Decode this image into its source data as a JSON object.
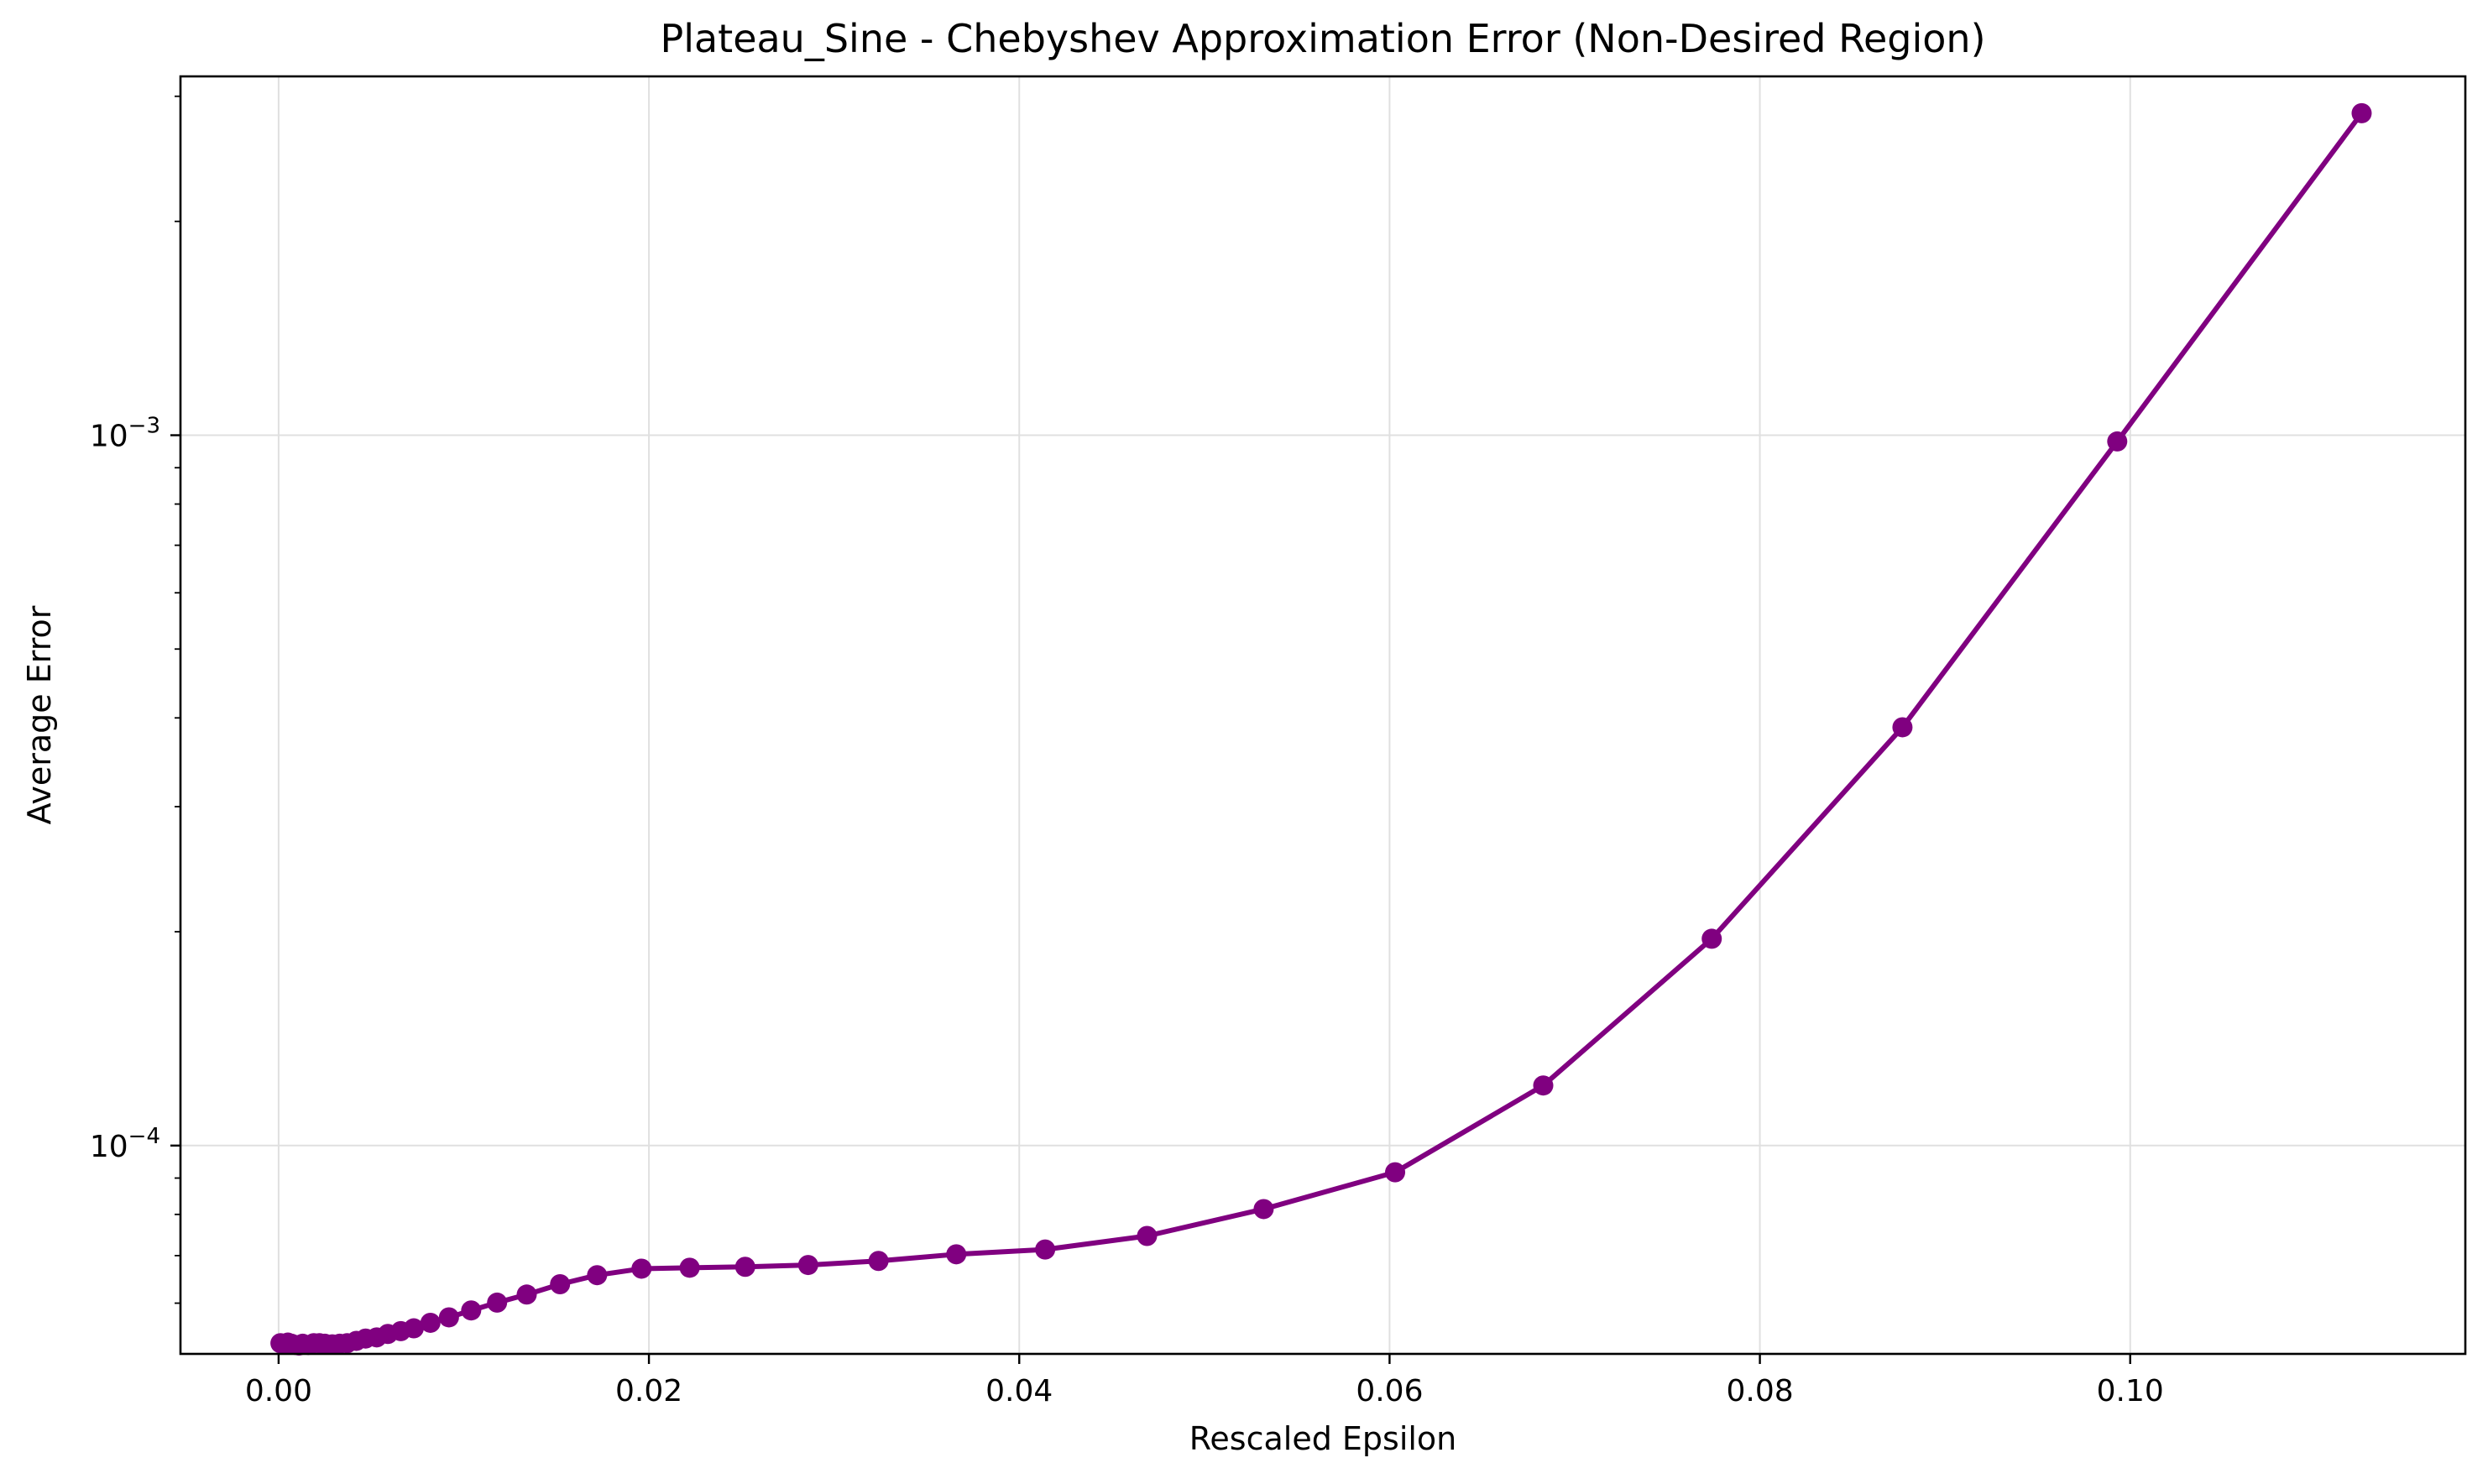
{
  "chart_data": {
    "type": "line",
    "title": "Plateau_Sine - Chebyshev Approximation Error (Non-Desired Region)",
    "xlabel": "Rescaled Epsilon",
    "ylabel": "Average Error",
    "x_ticks": [
      "0.00",
      "0.02",
      "0.04",
      "0.06",
      "0.08",
      "0.10"
    ],
    "y_ticks": [
      {
        "base": "10",
        "exp": "−4",
        "value": 0.0001
      },
      {
        "base": "10",
        "exp": "−3",
        "value": 0.001
      }
    ],
    "xlim": [
      -0.0053,
      0.1181
    ],
    "ylim": [
      5.09e-05,
      0.0032
    ],
    "yscale": "log",
    "grid": true,
    "legend": "none",
    "colors": {
      "line": "#800080",
      "grid": "#e0e0e0",
      "axes": "#000000"
    },
    "series": [
      {
        "x": [
          0.0001,
          0.0003,
          0.0005,
          0.0007,
          0.0009,
          0.0011,
          0.0013,
          0.0016,
          0.0019,
          0.0022,
          0.0025,
          0.0029,
          0.0033,
          0.0037,
          0.0042,
          0.0047,
          0.0053,
          0.0059,
          0.0066,
          0.0073,
          0.0082,
          0.0092,
          0.0104,
          0.0118,
          0.0134,
          0.0152,
          0.0172,
          0.0196,
          0.0222,
          0.0252,
          0.0286,
          0.0324,
          0.0366,
          0.0414,
          0.0469,
          0.0532,
          0.0603,
          0.0683,
          0.0774,
          0.0877,
          0.0993,
          0.1125
        ],
        "values": [
          5.27e-05,
          5.26e-05,
          5.28e-05,
          5.26e-05,
          5.24e-05,
          5.23e-05,
          5.26e-05,
          5.24e-05,
          5.27e-05,
          5.27e-05,
          5.26e-05,
          5.25e-05,
          5.26e-05,
          5.27e-05,
          5.31e-05,
          5.35e-05,
          5.37e-05,
          5.43e-05,
          5.48e-05,
          5.53e-05,
          5.63e-05,
          5.73e-05,
          5.86e-05,
          6.01e-05,
          6.17e-05,
          6.38e-05,
          6.57e-05,
          6.71e-05,
          6.73e-05,
          6.75e-05,
          6.79e-05,
          6.88e-05,
          7.03e-05,
          7.14e-05,
          7.46e-05,
          8.14e-05,
          9.17e-05,
          0.0001215,
          0.0001955,
          0.000388,
          0.00098,
          0.00284
        ]
      }
    ]
  }
}
